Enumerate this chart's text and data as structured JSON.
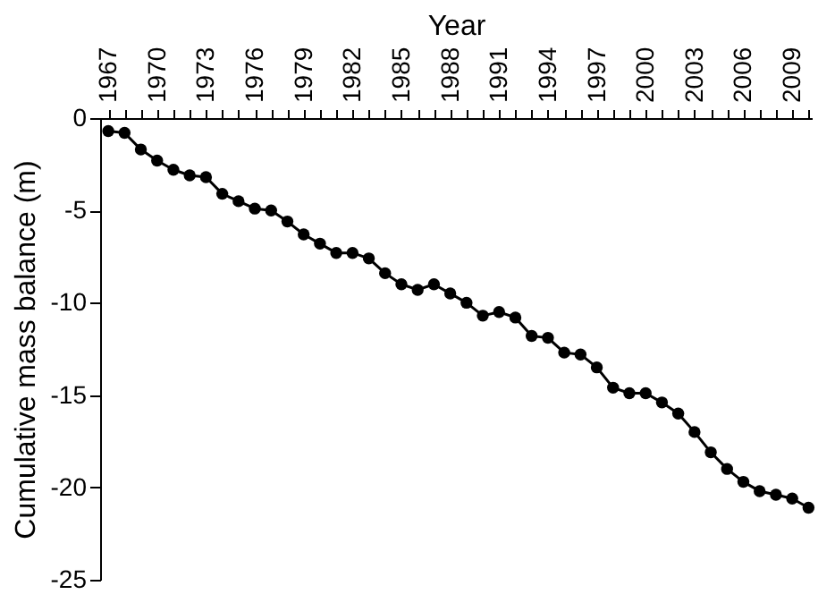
{
  "chart_data": {
    "type": "line",
    "xlabel": "Year",
    "ylabel": "Cumulative mass balance (m)",
    "x": [
      1967,
      1968,
      1969,
      1970,
      1971,
      1972,
      1973,
      1974,
      1975,
      1976,
      1977,
      1978,
      1979,
      1980,
      1981,
      1982,
      1983,
      1984,
      1985,
      1986,
      1987,
      1988,
      1989,
      1990,
      1991,
      1992,
      1993,
      1994,
      1995,
      1996,
      1997,
      1998,
      1999,
      2000,
      2001,
      2002,
      2003,
      2004,
      2005,
      2006,
      2007,
      2008,
      2009,
      2010
    ],
    "series": [
      {
        "color": "#000000",
        "values": [
          -0.7,
          -0.8,
          -1.7,
          -2.3,
          -2.8,
          -3.1,
          -3.2,
          -4.1,
          -4.5,
          -4.9,
          -5.0,
          -5.6,
          -6.3,
          -6.8,
          -7.3,
          -7.3,
          -7.6,
          -8.4,
          -9.0,
          -9.3,
          -9.0,
          -9.5,
          -10.0,
          -10.7,
          -10.5,
          -10.8,
          -11.8,
          -11.9,
          -12.7,
          -12.8,
          -13.5,
          -14.6,
          -14.9,
          -14.9,
          -15.4,
          -16.0,
          -17.0,
          -18.1,
          -19.0,
          -19.7,
          -20.2,
          -20.4,
          -20.6,
          -21.1
        ]
      }
    ],
    "xlim": [
      1966.5,
      2010.2
    ],
    "xticks": [
      1967,
      {
        "value": 1968,
        "label": null
      },
      {
        "value": 1969,
        "label": null
      },
      1970,
      {
        "value": 1971,
        "label": null
      },
      {
        "value": 1972,
        "label": null
      },
      1973,
      {
        "value": 1974,
        "label": null
      },
      {
        "value": 1975,
        "label": null
      },
      1976,
      {
        "value": 1977,
        "label": null
      },
      {
        "value": 1978,
        "label": null
      },
      1979,
      {
        "value": 1980,
        "label": null
      },
      {
        "value": 1981,
        "label": null
      },
      1982,
      {
        "value": 1983,
        "label": null
      },
      {
        "value": 1984,
        "label": null
      },
      1985,
      {
        "value": 1986,
        "label": null
      },
      {
        "value": 1987,
        "label": null
      },
      1988,
      {
        "value": 1989,
        "label": null
      },
      {
        "value": 1990,
        "label": null
      },
      1991,
      {
        "value": 1992,
        "label": null
      },
      {
        "value": 1993,
        "label": null
      },
      1994,
      {
        "value": 1995,
        "label": null
      },
      {
        "value": 1996,
        "label": null
      },
      1997,
      {
        "value": 1998,
        "label": null
      },
      {
        "value": 1999,
        "label": null
      },
      2000,
      {
        "value": 2001,
        "label": null
      },
      {
        "value": 2002,
        "label": null
      },
      2003,
      {
        "value": 2004,
        "label": null
      },
      {
        "value": 2005,
        "label": null
      },
      2006,
      {
        "value": 2007,
        "label": null
      },
      {
        "value": 2008,
        "label": null
      },
      2009,
      {
        "value": 2010,
        "label": null
      }
    ],
    "ylim": [
      -25,
      0
    ],
    "yticks": [
      0,
      -5,
      -10,
      -15,
      -20,
      -25
    ],
    "grid": false,
    "legend": false,
    "marker": "circle",
    "line_style": "solid"
  }
}
